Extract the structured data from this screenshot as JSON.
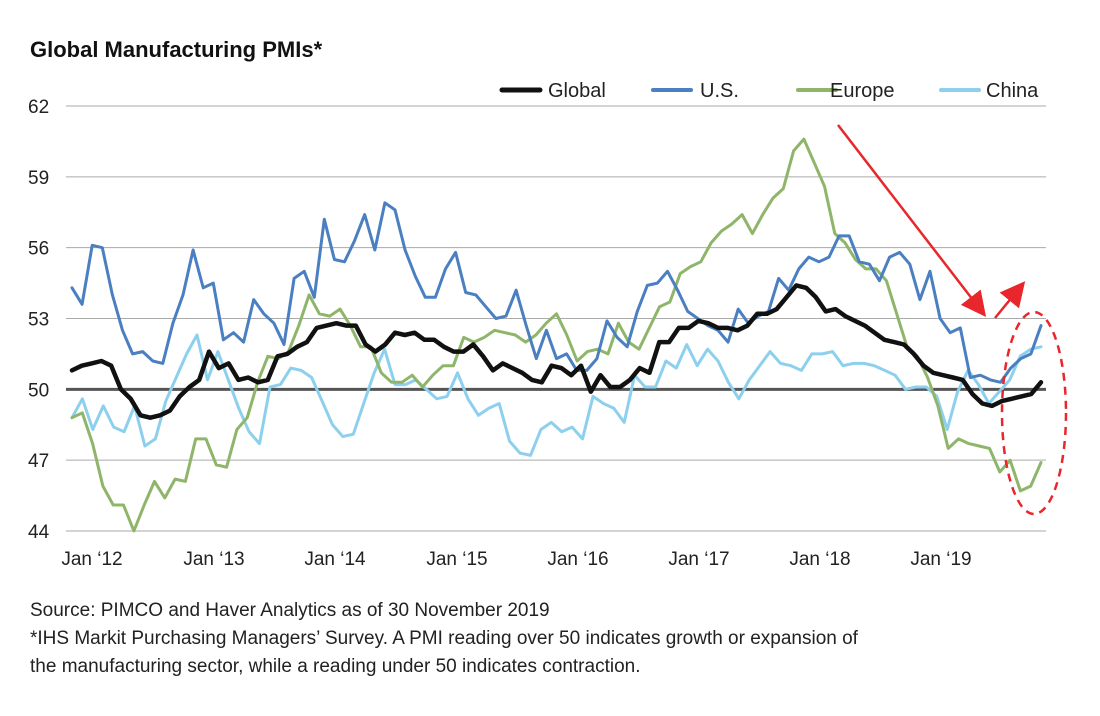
{
  "chart_data": {
    "type": "line",
    "title": "Global Manufacturing PMIs*",
    "xlabel": "",
    "ylabel": "",
    "ylim": [
      44,
      62
    ],
    "y_ticks": [
      "44",
      "47",
      "50",
      "53",
      "56",
      "59",
      "62"
    ],
    "x_ticks": [
      "Jan ‘12",
      "Jan ‘13",
      "Jan ‘14",
      "Jan ‘15",
      "Jan ‘16",
      "Jan ‘17",
      "Jan ‘18",
      "Jan ‘19"
    ],
    "x_start": "2012-01",
    "x_end": "2019-11",
    "reference_line": 50,
    "legend_position": "top-right",
    "grid": "horizontal",
    "series": [
      {
        "name": "Global",
        "color": "#111111",
        "values": [
          50.8,
          51.0,
          51.1,
          51.2,
          51.0,
          50.0,
          49.6,
          48.9,
          48.8,
          48.9,
          49.1,
          49.7,
          50.1,
          50.4,
          51.6,
          50.9,
          51.1,
          50.4,
          50.5,
          50.3,
          50.4,
          51.4,
          51.5,
          51.8,
          52.0,
          52.6,
          52.7,
          52.8,
          52.7,
          52.7,
          51.9,
          51.6,
          51.9,
          52.4,
          52.3,
          52.4,
          52.1,
          52.1,
          51.8,
          51.6,
          51.6,
          51.9,
          51.4,
          50.8,
          51.1,
          50.9,
          50.7,
          50.4,
          50.3,
          51.0,
          50.9,
          50.6,
          51.0,
          49.9,
          50.6,
          50.1,
          50.1,
          50.4,
          50.9,
          50.7,
          52.0,
          52.0,
          52.6,
          52.6,
          52.9,
          52.8,
          52.6,
          52.6,
          52.5,
          52.7,
          53.2,
          53.2,
          53.4,
          53.9,
          54.4,
          54.3,
          53.9,
          53.3,
          53.4,
          53.1,
          52.9,
          52.7,
          52.4,
          52.1,
          52.0,
          51.9,
          51.5,
          51.0,
          50.7,
          50.6,
          50.5,
          50.4,
          49.8,
          49.4,
          49.3,
          49.5,
          49.6,
          49.7,
          49.8,
          50.3
        ]
      },
      {
        "name": "U.S.",
        "color": "#4a7fc1",
        "values": [
          54.3,
          53.6,
          56.1,
          56.0,
          54.0,
          52.5,
          51.5,
          51.6,
          51.2,
          51.1,
          52.8,
          54.0,
          55.9,
          54.3,
          54.5,
          52.1,
          52.4,
          52.0,
          53.8,
          53.2,
          52.8,
          51.9,
          54.7,
          55.0,
          53.9,
          57.2,
          55.5,
          55.4,
          56.3,
          57.4,
          55.9,
          57.9,
          57.6,
          55.9,
          54.8,
          53.9,
          53.9,
          55.1,
          55.8,
          54.1,
          54.0,
          53.5,
          53.0,
          53.1,
          54.2,
          52.7,
          51.3,
          52.5,
          51.3,
          51.5,
          50.8,
          50.8,
          51.3,
          52.9,
          52.2,
          51.8,
          53.3,
          54.4,
          54.5,
          55.0,
          54.2,
          53.3,
          53.0,
          52.7,
          52.5,
          52.0,
          53.4,
          52.8,
          53.1,
          53.3,
          54.7,
          54.2,
          55.1,
          55.6,
          55.4,
          55.6,
          56.5,
          56.5,
          55.4,
          55.3,
          54.6,
          55.6,
          55.8,
          55.3,
          53.8,
          55.0,
          53.0,
          52.4,
          52.6,
          50.5,
          50.6,
          50.4,
          50.3,
          50.9,
          51.3,
          51.5,
          52.7
        ]
      },
      {
        "name": "Europe",
        "color": "#8fb56a",
        "values": [
          48.8,
          49.0,
          47.7,
          45.9,
          45.1,
          45.1,
          44.0,
          45.1,
          46.1,
          45.4,
          46.2,
          46.1,
          47.9,
          47.9,
          46.8,
          46.7,
          48.3,
          48.8,
          50.3,
          51.4,
          51.3,
          51.6,
          52.7,
          54.0,
          53.2,
          53.1,
          53.4,
          52.7,
          51.8,
          51.8,
          50.7,
          50.3,
          50.3,
          50.6,
          50.1,
          50.6,
          51.0,
          51.0,
          52.2,
          52.0,
          52.2,
          52.5,
          52.4,
          52.3,
          52.0,
          52.3,
          52.8,
          53.2,
          52.3,
          51.2,
          51.6,
          51.7,
          51.5,
          52.8,
          52.0,
          51.7,
          52.6,
          53.5,
          53.7,
          54.9,
          55.2,
          55.4,
          56.2,
          56.7,
          57.0,
          57.4,
          56.6,
          57.4,
          58.1,
          58.5,
          60.1,
          60.6,
          59.6,
          58.6,
          56.6,
          56.2,
          55.5,
          55.1,
          55.1,
          54.6,
          53.2,
          51.8,
          51.4,
          50.5,
          49.3,
          47.5,
          47.9,
          47.7,
          47.6,
          47.5,
          46.5,
          47.0,
          45.7,
          45.9,
          46.9
        ]
      },
      {
        "name": "China",
        "color": "#8dd0ee",
        "values": [
          48.8,
          49.6,
          48.3,
          49.3,
          48.4,
          48.2,
          49.3,
          47.6,
          47.9,
          49.5,
          50.5,
          51.5,
          52.3,
          50.4,
          51.6,
          50.4,
          49.2,
          48.2,
          47.7,
          50.1,
          50.2,
          50.9,
          50.8,
          50.5,
          49.5,
          48.5,
          48.0,
          48.1,
          49.4,
          50.7,
          51.7,
          50.2,
          50.2,
          50.4,
          50.0,
          49.6,
          49.7,
          50.7,
          49.6,
          48.9,
          49.2,
          49.4,
          47.8,
          47.3,
          47.2,
          48.3,
          48.6,
          48.2,
          48.4,
          47.9,
          49.7,
          49.4,
          49.2,
          48.6,
          50.6,
          50.1,
          50.1,
          51.2,
          50.9,
          51.9,
          51.0,
          51.7,
          51.2,
          50.3,
          49.6,
          50.4,
          51.0,
          51.6,
          51.1,
          51.0,
          50.8,
          51.5,
          51.5,
          51.6,
          51.0,
          51.1,
          51.1,
          51.0,
          50.8,
          50.6,
          50.0,
          50.1,
          50.1,
          49.7,
          48.3,
          49.9,
          50.8,
          50.2,
          49.4,
          49.9,
          50.4,
          51.4,
          51.7,
          51.8
        ]
      }
    ],
    "annotations": [
      "red arrow pointing down toward mid-2019",
      "red arrow pointing up toward late 2019",
      "red dashed ellipse around late-2019 readings"
    ]
  },
  "legend": {
    "items": [
      {
        "label": "Global",
        "color": "#111111"
      },
      {
        "label": "U.S.",
        "color": "#4a7fc1"
      },
      {
        "label": "Europe",
        "color": "#8fb56a"
      },
      {
        "label": "China",
        "color": "#8dd0ee"
      }
    ]
  },
  "notes": {
    "source": "Source: PIMCO and Haver Analytics as of 30 November 2019",
    "footnote_line1": "*IHS Markit Purchasing Managers’ Survey. A PMI reading over 50 indicates growth or expansion of",
    "footnote_line2": "the manufacturing sector, while a reading under 50 indicates contraction."
  },
  "colors": {
    "annotation_red": "#e8262b",
    "gridline": "#aaaaaa",
    "reference_line": "#555555"
  }
}
